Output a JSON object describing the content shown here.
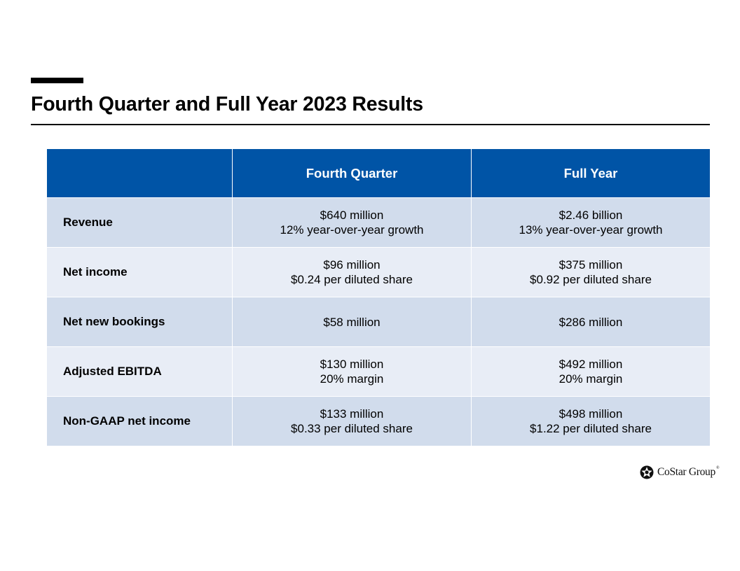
{
  "slide": {
    "title": "Fourth Quarter and Full Year 2023 Results"
  },
  "table": {
    "headers": [
      "",
      "Fourth Quarter",
      "Full Year"
    ],
    "rows": [
      {
        "label": "Revenue",
        "fourth_quarter": [
          "$640 million",
          "12% year-over-year growth"
        ],
        "full_year": [
          "$2.46 billion",
          "13% year-over-year growth"
        ]
      },
      {
        "label": "Net income",
        "fourth_quarter": [
          "$96 million",
          "$0.24 per diluted share"
        ],
        "full_year": [
          "$375 million",
          "$0.92 per diluted share"
        ]
      },
      {
        "label": "Net new bookings",
        "fourth_quarter": [
          "$58 million"
        ],
        "full_year": [
          "$286 million"
        ]
      },
      {
        "label": "Adjusted EBITDA",
        "fourth_quarter": [
          "$130 million",
          "20% margin"
        ],
        "full_year": [
          "$492 million",
          "20% margin"
        ]
      },
      {
        "label": "Non-GAAP net income",
        "fourth_quarter": [
          "$133 million",
          "$0.33 per diluted share"
        ],
        "full_year": [
          "$498 million",
          "$1.22 per diluted share"
        ]
      }
    ]
  },
  "logo": {
    "text": "CoStar Group",
    "mark": "®",
    "icon": "costar-star-icon"
  },
  "colors": {
    "header_blue": "#0054a6",
    "row_dark": "#d1dcec",
    "row_light": "#e8edf6"
  }
}
